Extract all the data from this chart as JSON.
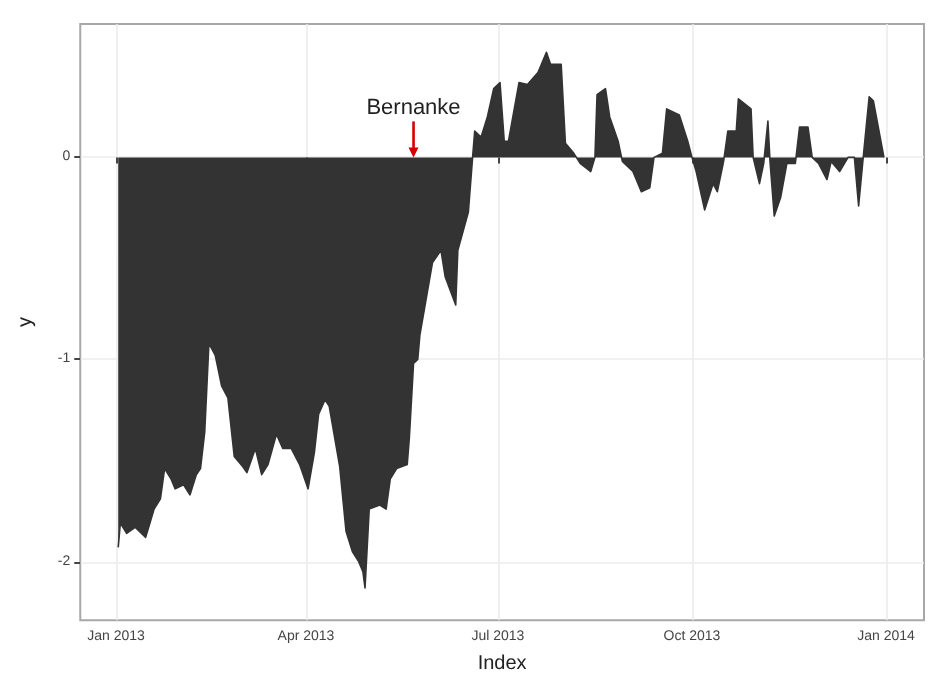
{
  "chart_data": {
    "type": "area",
    "xlabel": "Index",
    "ylabel": "y",
    "grid": true,
    "xlim": [
      "2012-12-15",
      "2014-01-19"
    ],
    "ylim": [
      -2.29,
      0.66
    ],
    "xticks": [
      {
        "value": "2013-01-01",
        "label": "Jan 2013"
      },
      {
        "value": "2013-04-01",
        "label": "Apr 2013"
      },
      {
        "value": "2013-07-01",
        "label": "Jul 2013"
      },
      {
        "value": "2013-10-01",
        "label": "Oct 2013"
      },
      {
        "value": "2014-01-01",
        "label": "Jan 2014"
      }
    ],
    "yticks": [
      -2,
      -1,
      0
    ],
    "annotations": [
      {
        "text": "Bernanke",
        "x": "2013-05-22",
        "y": 0
      }
    ],
    "series": [
      {
        "color": "#333333",
        "x": [
          "2013-01-02",
          "2013-01-03",
          "2013-01-06",
          "2013-01-10",
          "2013-01-15",
          "2013-01-17",
          "2013-01-19",
          "2013-01-22",
          "2013-01-24",
          "2013-01-27",
          "2013-01-29",
          "2013-02-02",
          "2013-02-05",
          "2013-02-08",
          "2013-02-10",
          "2013-02-12",
          "2013-02-14",
          "2013-02-17",
          "2013-02-20",
          "2013-02-23",
          "2013-02-26",
          "2013-03-02",
          "2013-03-04",
          "2013-03-08",
          "2013-03-11",
          "2013-03-14",
          "2013-03-18",
          "2013-03-21",
          "2013-03-25",
          "2013-03-29",
          "2013-04-02",
          "2013-04-05",
          "2013-04-07",
          "2013-04-10",
          "2013-04-12",
          "2013-04-17",
          "2013-04-20",
          "2013-04-23",
          "2013-04-26",
          "2013-04-28",
          "2013-04-29",
          "2013-05-01",
          "2013-05-06",
          "2013-05-09",
          "2013-05-11",
          "2013-05-14",
          "2013-05-19",
          "2013-05-20",
          "2013-05-22",
          "2013-05-24",
          "2013-05-25",
          "2013-05-31",
          "2013-06-04",
          "2013-06-06",
          "2013-06-11",
          "2013-06-12",
          "2013-06-17",
          "2013-06-19",
          "2013-06-20",
          "2013-06-23",
          "2013-06-26",
          "2013-06-29",
          "2013-07-02",
          "2013-07-04",
          "2013-07-06",
          "2013-07-11",
          "2013-07-15",
          "2013-07-20",
          "2013-07-24",
          "2013-07-26",
          "2013-07-31",
          "2013-08-02",
          "2013-08-06",
          "2013-08-09",
          "2013-08-14",
          "2013-08-16",
          "2013-08-17",
          "2013-08-21",
          "2013-08-23",
          "2013-08-27",
          "2013-08-29",
          "2013-09-03",
          "2013-09-07",
          "2013-09-11",
          "2013-09-13",
          "2013-09-17",
          "2013-09-19",
          "2013-09-25",
          "2013-09-29",
          "2013-10-01",
          "2013-10-03",
          "2013-10-07",
          "2013-10-11",
          "2013-10-13",
          "2013-10-16",
          "2013-10-18",
          "2013-10-22",
          "2013-10-23",
          "2013-10-29",
          "2013-10-30",
          "2013-11-02",
          "2013-11-04",
          "2013-11-06",
          "2013-11-07",
          "2013-11-09",
          "2013-11-12",
          "2013-11-15",
          "2013-11-19",
          "2013-11-21",
          "2013-11-25",
          "2013-11-27",
          "2013-11-30",
          "2013-12-04",
          "2013-12-06",
          "2013-12-10",
          "2013-12-14",
          "2013-12-17",
          "2013-12-19",
          "2013-12-21",
          "2013-12-24",
          "2013-12-26",
          "2013-12-31"
        ],
        "values": [
          -1.93,
          -1.81,
          -1.86,
          -1.83,
          -1.88,
          -1.81,
          -1.74,
          -1.69,
          -1.54,
          -1.59,
          -1.64,
          -1.62,
          -1.67,
          -1.57,
          -1.54,
          -1.36,
          -0.92,
          -0.98,
          -1.13,
          -1.19,
          -1.48,
          -1.53,
          -1.56,
          -1.44,
          -1.57,
          -1.52,
          -1.37,
          -1.44,
          -1.44,
          -1.52,
          -1.64,
          -1.46,
          -1.27,
          -1.2,
          -1.23,
          -1.53,
          -1.85,
          -1.95,
          -2.0,
          -2.05,
          -2.13,
          -1.74,
          -1.72,
          -1.74,
          -1.59,
          -1.54,
          -1.52,
          -1.39,
          -1.02,
          -1.0,
          -0.88,
          -0.52,
          -0.46,
          -0.59,
          -0.73,
          -0.46,
          -0.27,
          0,
          0.13,
          0.1,
          0.2,
          0.34,
          0.37,
          0.08,
          0.08,
          0.37,
          0.36,
          0.42,
          0.52,
          0.46,
          0.46,
          0.07,
          0.02,
          -0.03,
          -0.07,
          0,
          0.31,
          0.34,
          0.2,
          0.08,
          -0.02,
          -0.07,
          -0.17,
          -0.15,
          0,
          0.02,
          0.24,
          0.21,
          0.08,
          0,
          -0.07,
          -0.26,
          -0.13,
          -0.17,
          -0.02,
          0.13,
          0.13,
          0.29,
          0.24,
          0,
          -0.13,
          -0.03,
          0.18,
          -0.02,
          -0.29,
          -0.2,
          -0.03,
          -0.03,
          0.15,
          0.15,
          0,
          -0.03,
          -0.11,
          -0.02,
          -0.07,
          0,
          0,
          -0.24,
          -0.02,
          0.3,
          0.28,
          0
        ]
      }
    ]
  }
}
